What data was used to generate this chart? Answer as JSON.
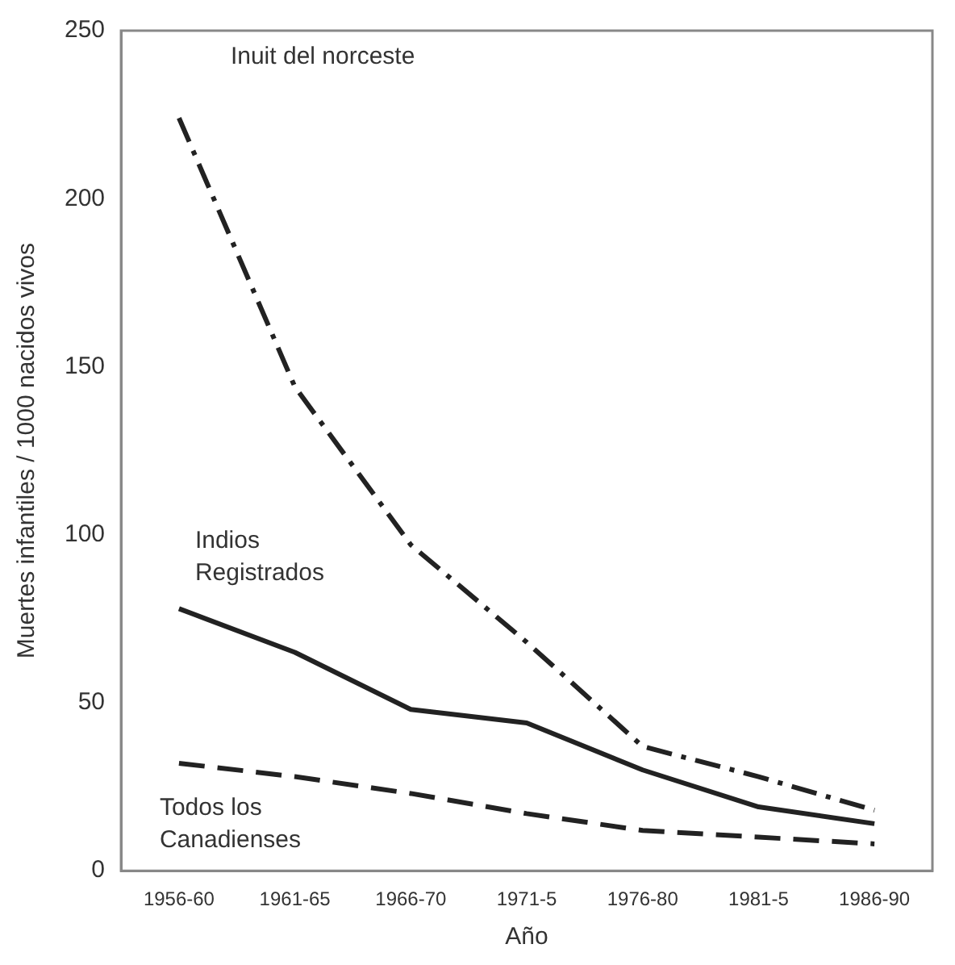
{
  "chart_data": {
    "type": "line",
    "xlabel": "Año",
    "ylabel": "Muertes infantiles / 1000 nacidos vivos",
    "categories": [
      "1956-60",
      "1961-65",
      "1966-70",
      "1971-5",
      "1976-80",
      "1981-5",
      "1986-90"
    ],
    "ylim": [
      0,
      250
    ],
    "yticks": [
      0,
      50,
      100,
      150,
      200,
      250
    ],
    "grid": false,
    "legend": false,
    "marker": "none",
    "series": [
      {
        "name": "Inuit del norceste",
        "color": "#222222",
        "line_style": "dashdot",
        "values": [
          224,
          144,
          97,
          68,
          37,
          28,
          18
        ]
      },
      {
        "name": "Indios Registrados",
        "color": "#222222",
        "line_style": "solid",
        "values": [
          78,
          65,
          48,
          44,
          30,
          19,
          14
        ]
      },
      {
        "name": "Todos los Canadienses",
        "color": "#222222",
        "line_style": "dashed",
        "values": [
          32,
          28,
          23,
          17,
          12,
          10,
          8
        ]
      }
    ]
  }
}
